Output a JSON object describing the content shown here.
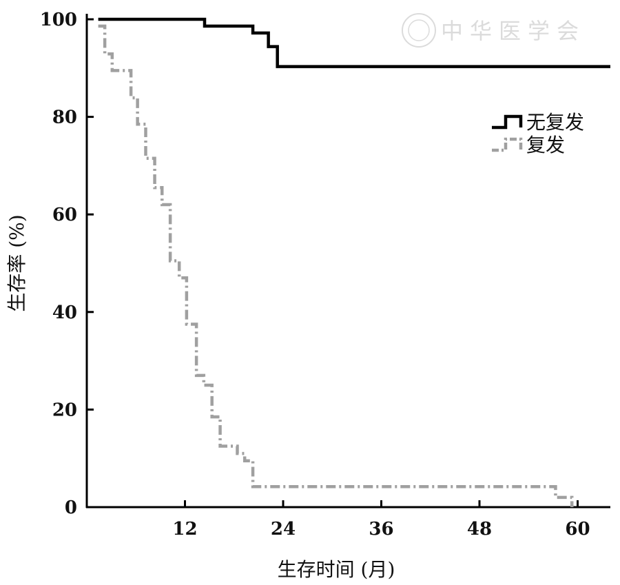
{
  "chart_data": {
    "type": "line",
    "subtype": "kaplan-meier step",
    "title": "",
    "xlabel": "生存时间 (月)",
    "ylabel": "生存率 (%)",
    "xlim": [
      0,
      64
    ],
    "ylim": [
      0,
      100
    ],
    "xticks": [
      12,
      24,
      36,
      48,
      60
    ],
    "yticks": [
      0,
      20,
      40,
      60,
      80,
      100
    ],
    "grid": false,
    "legend_position": "top-right",
    "series": [
      {
        "name": "无复发",
        "color": "#000000",
        "style": "solid",
        "x": [
          1.4,
          14.4,
          20.3,
          22.2,
          23.3,
          64
        ],
        "y": [
          100,
          98.6,
          97.2,
          94.4,
          90.3,
          90.3
        ]
      },
      {
        "name": "复发",
        "color": "#a0a0a0",
        "style": "dash-dot",
        "x": [
          1.4,
          2.2,
          3.1,
          5.4,
          6.2,
          7.2,
          8.3,
          9.2,
          10.2,
          11.3,
          12.2,
          13.4,
          14.3,
          15.3,
          16.3,
          18.4,
          19.3,
          20.3,
          57.3,
          59.3
        ],
        "y": [
          98.6,
          92.9,
          89.5,
          83.9,
          78.5,
          71.5,
          65.5,
          62.0,
          50.5,
          47.0,
          37.5,
          27.0,
          25.0,
          18.5,
          12.5,
          11.0,
          9.5,
          4.2,
          2.0,
          0
        ]
      }
    ]
  },
  "watermark": {
    "text": "中华医学会"
  }
}
